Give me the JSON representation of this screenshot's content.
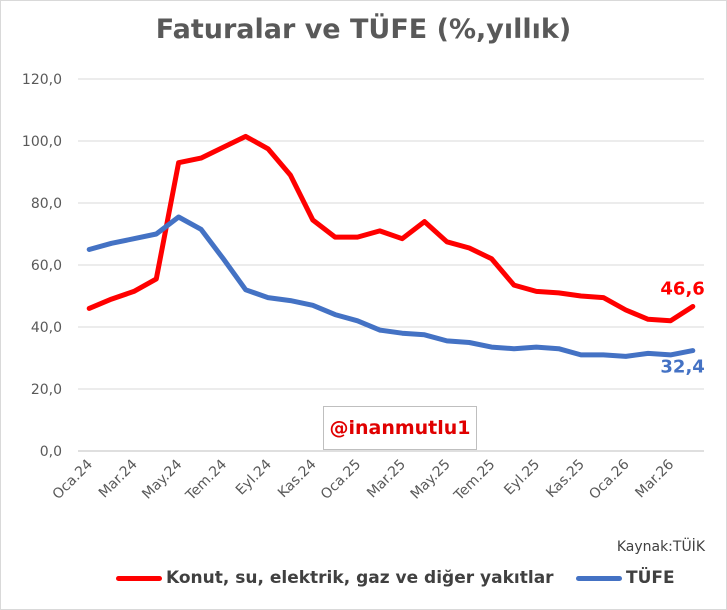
{
  "chart_data": {
    "type": "line",
    "title": "Faturalar ve TÜFE (%,yıllık)",
    "ylim": [
      0,
      120
    ],
    "yticks": [
      "0,0",
      "20,0",
      "40,0",
      "60,0",
      "80,0",
      "100,0",
      "120,0"
    ],
    "xtick_labels": [
      "Oca.24",
      "Mar.24",
      "May.24",
      "Tem.24",
      "Eyl.24",
      "Kas.24",
      "Oca.25",
      "Mar.25",
      "May.25",
      "Tem.25",
      "Eyl.25",
      "Kas.25",
      "Oca.26",
      "Mar.26"
    ],
    "x": [
      "Oca.24",
      "Şub.24",
      "Mar.24",
      "Nis.24",
      "May.24",
      "Haz.24",
      "Tem.24",
      "Ağu.24",
      "Eyl.24",
      "Eki.24",
      "Kas.24",
      "Ara.24",
      "Oca.25",
      "Şub.25",
      "Mar.25",
      "Nis.25",
      "May.25",
      "Haz.25",
      "Tem.25",
      "Ağu.25",
      "Eyl.25",
      "Eki.25",
      "Kas.25",
      "Ara.25",
      "Oca.26",
      "Şub.26",
      "Mar.26",
      "Nis.26"
    ],
    "grid": true,
    "legend_position": "bottom",
    "series": [
      {
        "name": "Konut, su, elektrik, gaz ve diğer yakıtlar",
        "color": "#ff0000",
        "values": [
          46.0,
          49.0,
          51.5,
          55.5,
          93.0,
          94.5,
          98.0,
          101.5,
          97.5,
          89.0,
          74.5,
          69.0,
          69.0,
          71.0,
          68.5,
          74.0,
          67.5,
          65.5,
          62.0,
          53.5,
          51.5,
          51.0,
          50.0,
          49.5,
          45.5,
          42.5,
          42.0,
          46.6
        ],
        "end_label": "46,6",
        "end_label_color": "#ff0000"
      },
      {
        "name": "TÜFE",
        "color": "#4472c4",
        "values": [
          65.0,
          67.0,
          68.5,
          70.0,
          75.5,
          71.5,
          62.0,
          52.0,
          49.5,
          48.5,
          47.0,
          44.0,
          42.0,
          39.0,
          38.0,
          37.5,
          35.5,
          35.0,
          33.5,
          33.0,
          33.5,
          33.0,
          31.0,
          31.0,
          30.5,
          31.5,
          31.0,
          32.4
        ],
        "end_label": "32,4",
        "end_label_color": "#4472c4"
      }
    ]
  },
  "watermark": "@inanmutlu1",
  "source_note": "Kaynak:TÜİK"
}
